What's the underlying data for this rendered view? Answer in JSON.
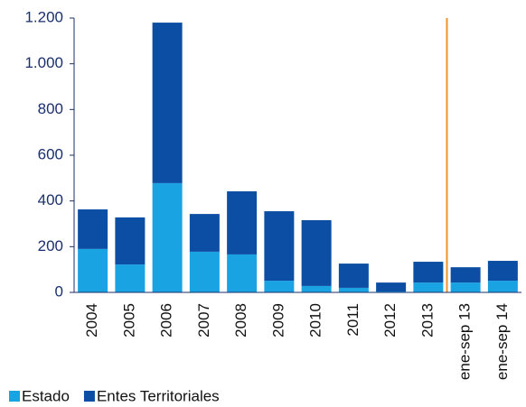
{
  "chart_data": {
    "type": "stacked_bar",
    "categories": [
      "2004",
      "2005",
      "2006",
      "2007",
      "2008",
      "2009",
      "2010",
      "2011",
      "2012",
      "2013",
      "ene-sep 13",
      "ene-sep 14"
    ],
    "series": [
      {
        "name": "Estado",
        "color": "#1aa3e3",
        "values": [
          190,
          122,
          478,
          178,
          166,
          51,
          28,
          20,
          4,
          43,
          43,
          51
        ]
      },
      {
        "name": "Entes Territoriales",
        "color": "#0c4ea3",
        "values": [
          173,
          206,
          702,
          165,
          276,
          304,
          288,
          106,
          39,
          91,
          67,
          87
        ]
      }
    ],
    "ylim": [
      0,
      1200
    ],
    "yticks": [
      0,
      200,
      400,
      600,
      800,
      {
        "value": 1000,
        "label": "1.000"
      },
      {
        "value": 1200,
        "label": "1.200"
      }
    ],
    "grid": false
  }
}
